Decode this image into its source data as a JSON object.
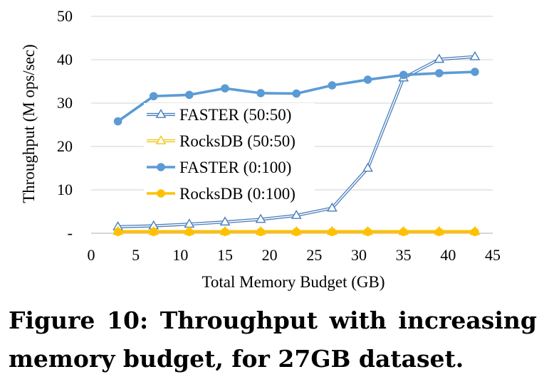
{
  "chart_data": {
    "type": "line",
    "title": "",
    "xlabel": "Total Memory Budget (GB)",
    "ylabel": "Throughput (M ops/sec)",
    "xlim": [
      0,
      45
    ],
    "ylim": [
      0,
      50
    ],
    "xticks": [
      "0",
      "5",
      "10",
      "15",
      "20",
      "25",
      "30",
      "35",
      "40",
      "45"
    ],
    "yticks": [
      "-",
      "10",
      "20",
      "30",
      "40",
      "50"
    ],
    "grid": "horizontal",
    "legend_position": "center-left",
    "x": [
      3,
      7,
      11,
      15,
      19,
      23,
      27,
      31,
      35,
      39,
      43
    ],
    "series": [
      {
        "name": "FASTER (50:50)",
        "color": "#4a7ebb",
        "marker": "open-triangle",
        "line": "double",
        "values": [
          1.5,
          1.7,
          2.1,
          2.6,
          3.2,
          4.1,
          5.8,
          15,
          35.8,
          40.1,
          40.7
        ]
      },
      {
        "name": "RocksDB (50:50)",
        "color": "#f5c518",
        "marker": "open-triangle",
        "line": "double",
        "values": [
          0.4,
          0.4,
          0.4,
          0.4,
          0.4,
          0.4,
          0.4,
          0.4,
          0.4,
          0.4,
          0.4
        ]
      },
      {
        "name": "FASTER (0:100)",
        "color": "#5b9bd5",
        "marker": "filled-circle",
        "line": "solid",
        "values": [
          25.8,
          31.6,
          31.9,
          33.4,
          32.3,
          32.2,
          34.1,
          35.4,
          36.5,
          36.9,
          37.2
        ]
      },
      {
        "name": "RocksDB (0:100)",
        "color": "#ffc000",
        "marker": "filled-circle",
        "line": "solid",
        "values": [
          0.3,
          0.3,
          0.3,
          0.3,
          0.3,
          0.3,
          0.3,
          0.3,
          0.3,
          0.3,
          0.3
        ]
      }
    ]
  },
  "caption": "Figure 10: Throughput with increasing memory budget, for 27GB dataset."
}
